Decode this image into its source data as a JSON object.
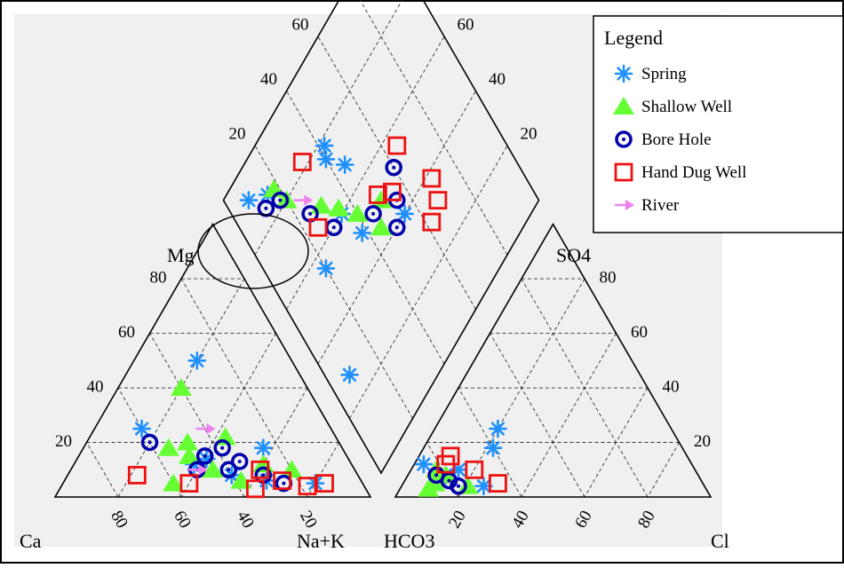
{
  "chart_data": {
    "type": "scatter",
    "diagram": "Piper trilinear diagram",
    "corner_labels": {
      "cation_left": "Ca",
      "cation_top": "Mg",
      "cation_right": "Na+K",
      "anion_left": "HCO3",
      "anion_top": "SO4",
      "anion_right": "Cl"
    },
    "tick_labels": [
      "20",
      "40",
      "60",
      "80"
    ],
    "grid": true,
    "legend_position": "top-right",
    "legend": {
      "title": "Legend",
      "entries": [
        {
          "name": "Spring",
          "marker": "asterisk",
          "color": "#1e90ff"
        },
        {
          "name": "Shallow Well",
          "marker": "triangle",
          "color": "#66ff33"
        },
        {
          "name": "Bore Hole",
          "marker": "circle",
          "color": "#0000aa"
        },
        {
          "name": "Hand Dug Well",
          "marker": "square",
          "color": "#ee1111"
        },
        {
          "name": "River",
          "marker": "arrow",
          "color": "#ee82ee"
        }
      ]
    },
    "annotations": [
      {
        "type": "ellipse",
        "around": "diamond-top-left"
      }
    ],
    "series": [
      {
        "name": "Spring",
        "cations": [
          {
            "ca": 30,
            "mg": 50
          },
          {
            "ca": 60,
            "mg": 25
          },
          {
            "ca": 25,
            "mg": 18
          },
          {
            "ca": 50,
            "mg": 12
          },
          {
            "ca": 40,
            "mg": 8
          },
          {
            "ca": 30,
            "mg": 6
          },
          {
            "ca": 15,
            "mg": 5
          },
          {
            "ca": 45,
            "mg": 14
          }
        ],
        "anions": [
          {
            "hco3": 60,
            "so4": 18
          },
          {
            "hco3": 75,
            "so4": 10
          },
          {
            "hco3": 55,
            "so4": 25
          },
          {
            "hco3": 80,
            "so4": 8
          },
          {
            "hco3": 70,
            "so4": 4
          },
          {
            "hco3": 85,
            "so4": 12
          }
        ],
        "diamond": [
          {
            "mgx": 92,
            "so4": 8
          },
          {
            "mgx": 87,
            "so4": 15
          },
          {
            "mgx": 78,
            "so4": 42
          },
          {
            "mgx": 75,
            "so4": 40
          },
          {
            "mgx": 68,
            "so4": 45
          },
          {
            "mgx": 60,
            "so4": 35
          },
          {
            "mgx": 50,
            "so4": 38
          },
          {
            "mgx": 40,
            "so4": 55
          },
          {
            "mgx": 28,
            "so4": 8
          },
          {
            "mgx": 55,
            "so4": 20
          }
        ]
      },
      {
        "name": "Shallow Well",
        "cations": [
          {
            "ca": 55,
            "mg": 18
          },
          {
            "ca": 40,
            "mg": 40
          },
          {
            "ca": 50,
            "mg": 15
          },
          {
            "ca": 35,
            "mg": 22
          },
          {
            "ca": 45,
            "mg": 10
          },
          {
            "ca": 28,
            "mg": 12
          },
          {
            "ca": 38,
            "mg": 6
          },
          {
            "ca": 20,
            "mg": 10
          },
          {
            "ca": 60,
            "mg": 5
          },
          {
            "ca": 48,
            "mg": 20
          }
        ],
        "anions": [
          {
            "hco3": 85,
            "so4": 5
          },
          {
            "hco3": 80,
            "so4": 8
          },
          {
            "hco3": 88,
            "so4": 3
          },
          {
            "hco3": 75,
            "so4": 4
          },
          {
            "hco3": 82,
            "so4": 10
          }
        ],
        "diamond": [
          {
            "mgx": 86,
            "so4": 18
          },
          {
            "mgx": 80,
            "so4": 20
          },
          {
            "mgx": 68,
            "so4": 30
          },
          {
            "mgx": 62,
            "so4": 35
          },
          {
            "mgx": 55,
            "so4": 40
          },
          {
            "mgx": 50,
            "so4": 50
          },
          {
            "mgx": 45,
            "so4": 45
          }
        ]
      },
      {
        "name": "Bore Hole",
        "cations": [
          {
            "ca": 45,
            "mg": 15
          },
          {
            "ca": 40,
            "mg": 10
          },
          {
            "ca": 35,
            "mg": 13
          },
          {
            "ca": 30,
            "mg": 8
          },
          {
            "ca": 50,
            "mg": 10
          },
          {
            "ca": 25,
            "mg": 5
          },
          {
            "ca": 60,
            "mg": 20
          },
          {
            "ca": 38,
            "mg": 18
          }
        ],
        "anions": [
          {
            "hco3": 80,
            "so4": 6
          },
          {
            "hco3": 78,
            "so4": 4
          },
          {
            "hco3": 83,
            "so4": 8
          }
        ],
        "diamond": [
          {
            "mgx": 85,
            "so4": 12
          },
          {
            "mgx": 82,
            "so4": 18
          },
          {
            "mgx": 70,
            "so4": 25
          },
          {
            "mgx": 60,
            "so4": 30
          },
          {
            "mgx": 50,
            "so4": 45
          },
          {
            "mgx": 52,
            "so4": 60
          },
          {
            "mgx": 45,
            "so4": 55
          },
          {
            "mgx": 40,
            "so4": 50
          }
        ]
      },
      {
        "name": "Hand Dug Well",
        "cations": [
          {
            "ca": 70,
            "mg": 8
          },
          {
            "ca": 55,
            "mg": 5
          },
          {
            "ca": 35,
            "mg": 3
          },
          {
            "ca": 25,
            "mg": 6
          },
          {
            "ca": 18,
            "mg": 4
          },
          {
            "ca": 12,
            "mg": 5
          },
          {
            "ca": 30,
            "mg": 10
          }
        ],
        "anions": [
          {
            "hco3": 75,
            "so4": 15
          },
          {
            "hco3": 70,
            "so4": 10
          },
          {
            "hco3": 65,
            "so4": 5
          },
          {
            "hco3": 78,
            "so4": 12
          }
        ],
        "diamond": [
          {
            "mgx": 82,
            "so4": 32
          },
          {
            "mgx": 65,
            "so4": 25
          },
          {
            "mgx": 55,
            "so4": 65
          },
          {
            "mgx": 52,
            "so4": 50
          },
          {
            "mgx": 48,
            "so4": 55
          },
          {
            "mgx": 38,
            "so4": 70
          },
          {
            "mgx": 32,
            "so4": 68
          },
          {
            "mgx": 30,
            "so4": 62
          }
        ]
      },
      {
        "name": "River",
        "cations": [
          {
            "ca": 40,
            "mg": 25
          },
          {
            "ca": 50,
            "mg": 10
          }
        ],
        "anions": [],
        "diamond": [
          {
            "mgx": 75,
            "so4": 25
          }
        ]
      }
    ]
  }
}
